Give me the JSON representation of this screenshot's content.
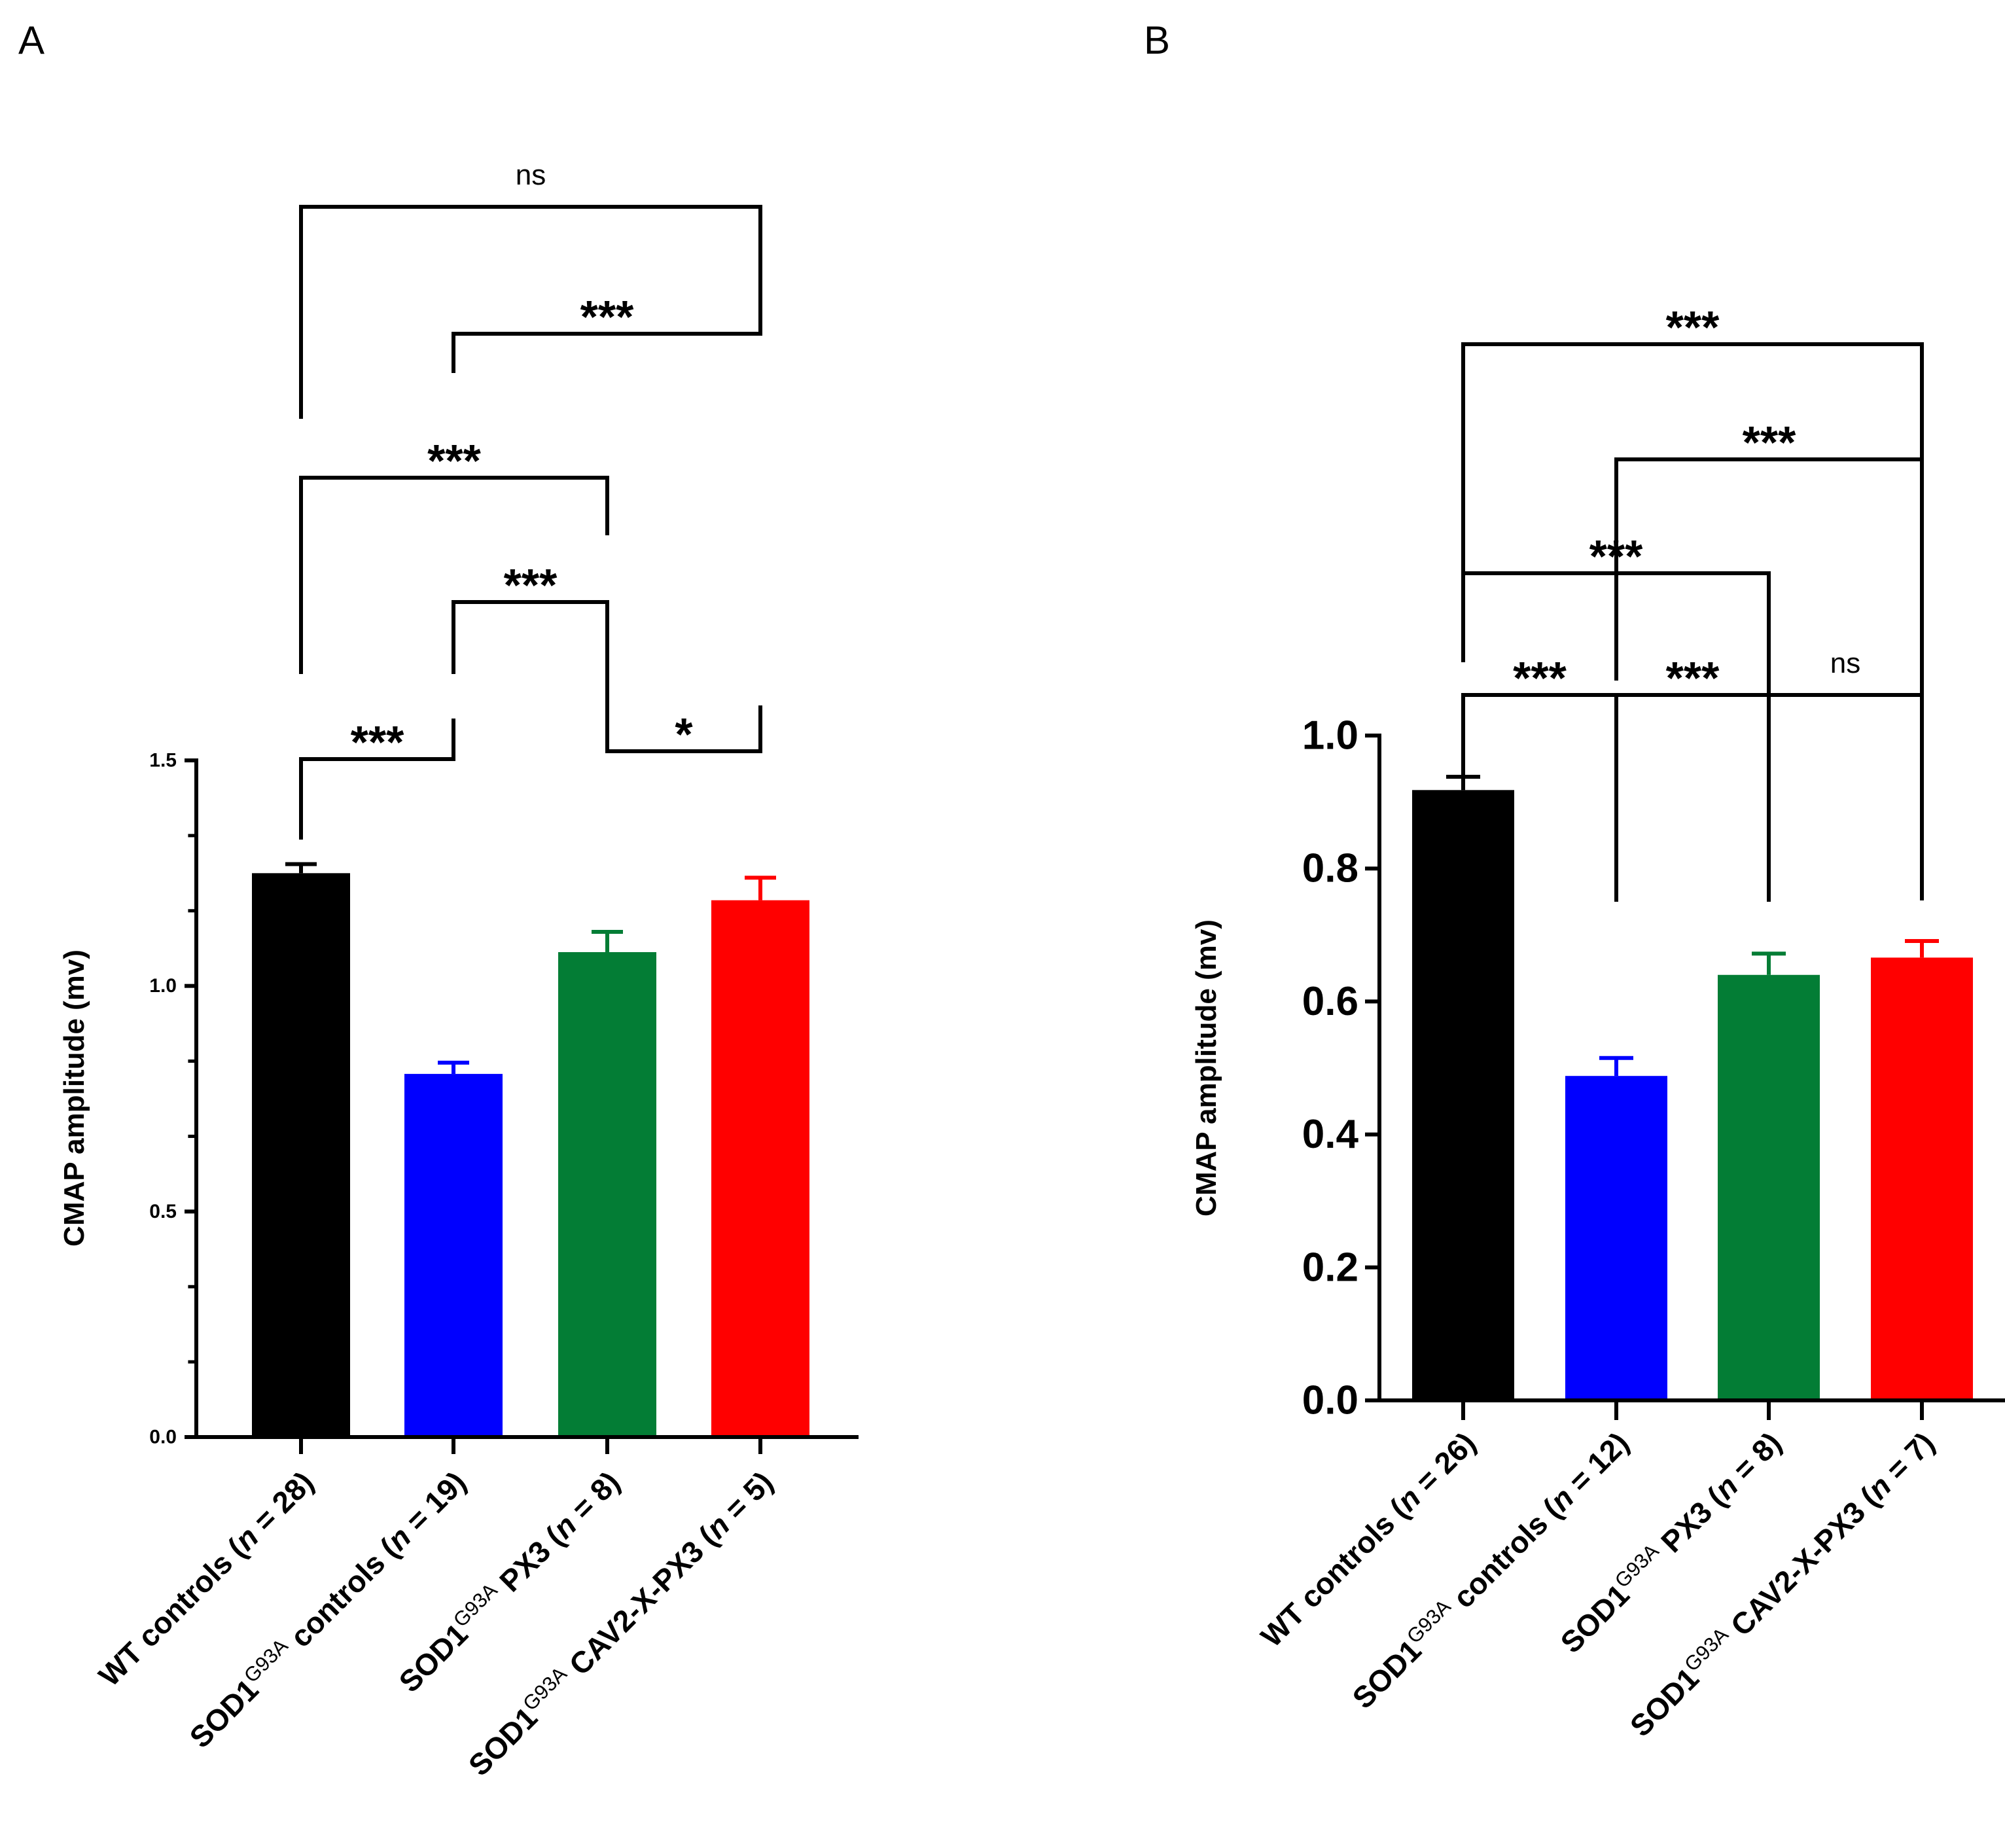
{
  "chart_data": [
    {
      "panel": "A",
      "type": "bar",
      "ylabel": "CMAP amplitude (mv)",
      "ylim": [
        0,
        1.5
      ],
      "yticks": [
        0,
        0.5,
        1,
        1.5
      ],
      "ytick_labels": [
        "0.0",
        "0.5",
        "1.0",
        "1.5"
      ],
      "categories": [
        {
          "base": "WT controls (",
          "n": "n",
          "rest": " = 28)"
        },
        {
          "base": "SOD1",
          "sup": "G93A",
          "mid": " controls (",
          "n": "n",
          "rest": " = 19)"
        },
        {
          "base": "SOD1",
          "sup": "G93A",
          "mid": " PX3 (",
          "n": "n",
          "rest": " = 8)"
        },
        {
          "base": "SOD1",
          "sup": "G93A",
          "mid": " CAV2-X-PX3 (",
          "n": "n",
          "rest": " = 5)"
        }
      ],
      "values": [
        1.25,
        0.805,
        1.075,
        1.19
      ],
      "errors": [
        0.02,
        0.025,
        0.045,
        0.05
      ],
      "colors": [
        "#000000",
        "#0000ff",
        "#037d35",
        "#ff0000"
      ],
      "comparisons": [
        {
          "from": 0,
          "to": 1,
          "label": "***"
        },
        {
          "from": 2,
          "to": 3,
          "label": "*"
        },
        {
          "from": 1,
          "to": 2,
          "label": "***"
        },
        {
          "from": 0,
          "to": 2,
          "label": "***"
        },
        {
          "from": 1,
          "to": 3,
          "label": "***"
        },
        {
          "from": 0,
          "to": 3,
          "label": "ns"
        }
      ]
    },
    {
      "panel": "B",
      "type": "bar",
      "ylabel": "CMAP amplitude (mv)",
      "ylim": [
        0,
        1.0
      ],
      "yticks": [
        0,
        0.2,
        0.4,
        0.6,
        0.8,
        1.0
      ],
      "ytick_labels": [
        "0.0",
        "0.2",
        "0.4",
        "0.6",
        "0.8",
        "1.0"
      ],
      "categories": [
        {
          "base": "WT controls (",
          "n": "n",
          "rest": " = 26)"
        },
        {
          "base": "SOD1",
          "sup": "G93A",
          "mid": " controls (",
          "n": "n",
          "rest": " = 12)"
        },
        {
          "base": "SOD1",
          "sup": "G93A",
          "mid": " PX3 (",
          "n": "n",
          "rest": " = 8)"
        },
        {
          "base": "SOD1",
          "sup": "G93A",
          "mid": " CAV2-X-PX3 (",
          "n": "n",
          "rest": " = 7)"
        }
      ],
      "values": [
        0.918,
        0.488,
        0.64,
        0.666
      ],
      "errors": [
        0.02,
        0.027,
        0.032,
        0.025
      ],
      "colors": [
        "#000000",
        "#0000ff",
        "#037d35",
        "#ff0000"
      ],
      "comparisons": [
        {
          "from": 0,
          "to": 1,
          "label": "***"
        },
        {
          "from": 1,
          "to": 2,
          "label": "***"
        },
        {
          "from": 2,
          "to": 3,
          "label": "ns"
        },
        {
          "from": 0,
          "to": 2,
          "label": "***"
        },
        {
          "from": 1,
          "to": 3,
          "label": "***"
        },
        {
          "from": 0,
          "to": 3,
          "label": "***"
        }
      ]
    }
  ]
}
